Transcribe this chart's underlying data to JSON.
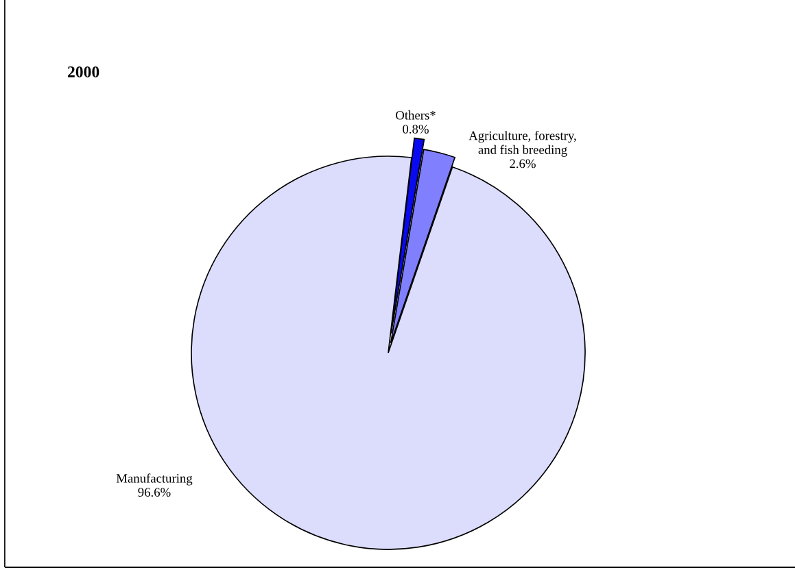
{
  "chart_data": {
    "type": "pie",
    "title": "2000",
    "categories": [
      "Others*",
      "Agriculture, forestry,\nand fish breeding",
      "Manufacturing"
    ],
    "values": [
      0.8,
      2.6,
      96.6
    ],
    "value_labels": [
      "0.8%",
      "2.6%",
      "96.6%"
    ],
    "colors": [
      "#0a0af0",
      "#8080ff",
      "#dcdcfc"
    ]
  }
}
